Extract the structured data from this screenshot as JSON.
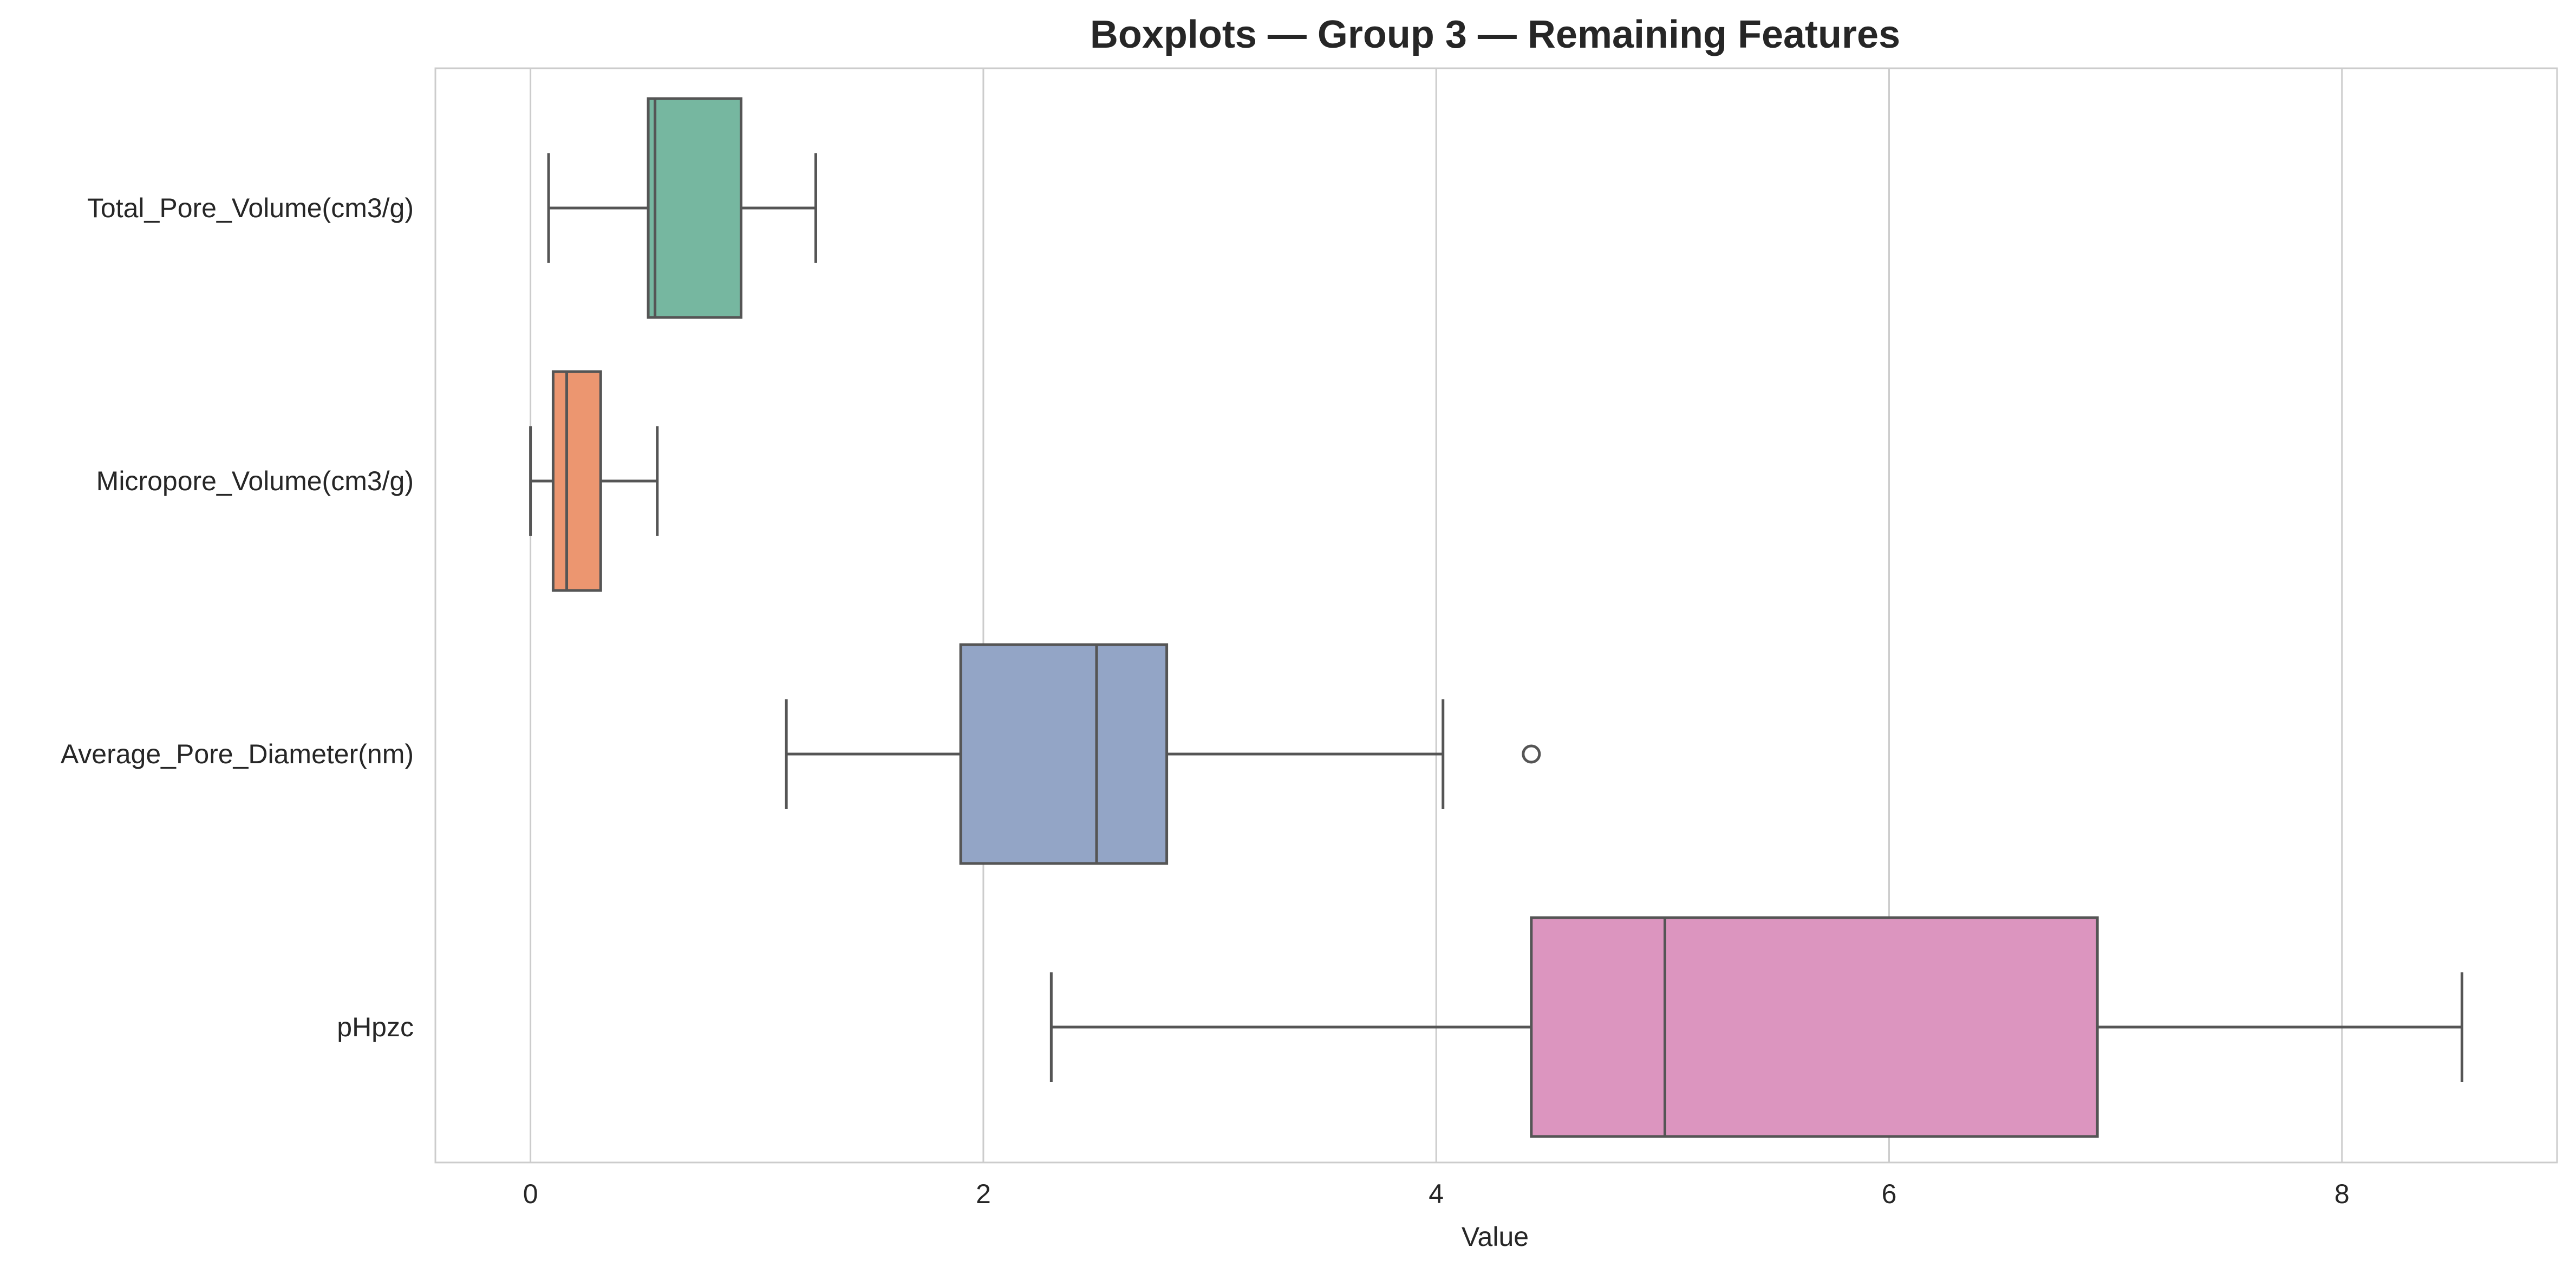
{
  "chart_data": {
    "type": "boxplot",
    "orientation": "horizontal",
    "title": "Boxplots — Group 3 — Remaining Features",
    "xlabel": "Value",
    "ylabel": "",
    "xlim": [
      -0.42,
      8.95
    ],
    "xticks": [
      0,
      2,
      4,
      6,
      8
    ],
    "grid": "vertical",
    "colors": {
      "edge": "#555555",
      "grid": "#cccccc",
      "frame": "#cccccc",
      "text": "#262626"
    },
    "series": [
      {
        "name": "Total_Pore_Volume(cm3/g)",
        "whisker_low": 0.08,
        "q1": 0.52,
        "median": 0.55,
        "q3": 0.93,
        "whisker_high": 1.26,
        "outliers": [],
        "color": "#76b7a0"
      },
      {
        "name": "Micropore_Volume(cm3/g)",
        "whisker_low": 0.0,
        "q1": 0.1,
        "median": 0.16,
        "q3": 0.31,
        "whisker_high": 0.56,
        "outliers": [],
        "color": "#ec9670"
      },
      {
        "name": "Average_Pore_Diameter(nm)",
        "whisker_low": 1.13,
        "q1": 1.9,
        "median": 2.5,
        "q3": 2.81,
        "whisker_high": 4.03,
        "outliers": [
          4.42
        ],
        "color": "#93a5c6"
      },
      {
        "name": "pHpzc",
        "whisker_low": 2.3,
        "q1": 4.42,
        "median": 5.01,
        "q3": 6.92,
        "whisker_high": 8.53,
        "outliers": [],
        "color": "#dc95bf"
      }
    ]
  }
}
